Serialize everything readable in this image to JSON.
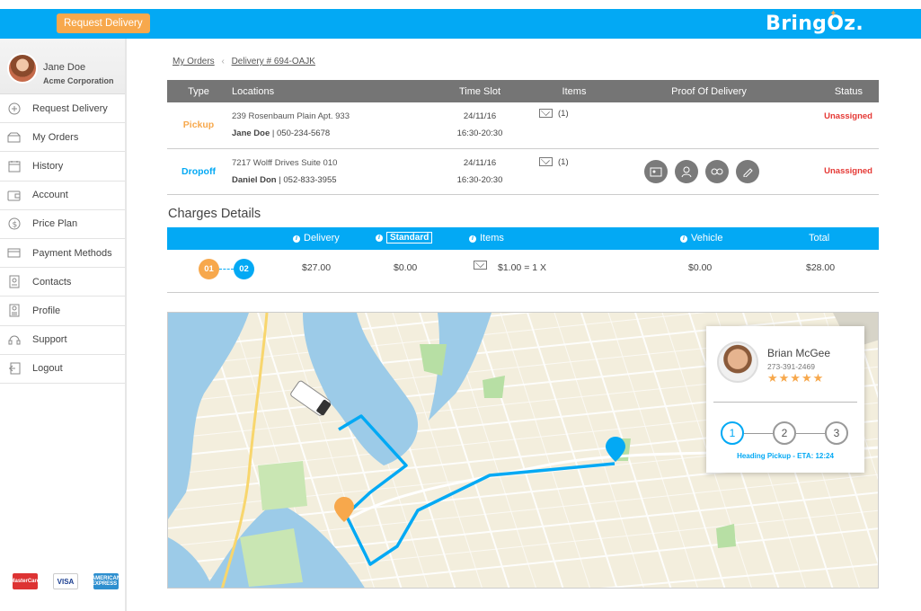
{
  "topbar": {
    "request_button": "Request Delivery",
    "logo": "BringOz.",
    "brand_color": "#03a9f4",
    "accent_color": "#f7a84c"
  },
  "sidebar": {
    "user_name": "Jane Doe",
    "company": "Acme Corporation",
    "items": [
      {
        "label": "Request Delivery",
        "icon": "plus-circle-icon"
      },
      {
        "label": "My Orders",
        "icon": "box-icon"
      },
      {
        "label": "History",
        "icon": "calendar-icon"
      },
      {
        "label": "Account",
        "icon": "wallet-icon"
      },
      {
        "label": "Price Plan",
        "icon": "dollar-coin-icon"
      },
      {
        "label": "Payment Methods",
        "icon": "credit-card-icon"
      },
      {
        "label": "Contacts",
        "icon": "contact-card-icon"
      },
      {
        "label": "Profile",
        "icon": "profile-icon"
      },
      {
        "label": "Support",
        "icon": "headset-icon"
      },
      {
        "label": "Logout",
        "icon": "logout-icon"
      }
    ],
    "payment_cards": [
      "MasterCard",
      "VISA",
      "AMERICAN EXPRESS"
    ]
  },
  "breadcrumb": {
    "parent": "My Orders",
    "current": "Delivery # 694-OAJK"
  },
  "orders": {
    "headers": [
      "Type",
      "Locations",
      "Time Slot",
      "Items",
      "Proof Of Delivery",
      "Status"
    ],
    "rows": [
      {
        "type": "Pickup",
        "address": "239 Rosenbaum Plain Apt. 933",
        "contact_name": "Jane Doe",
        "contact_phone": " | 050-234-5678",
        "date": "24/11/16",
        "time": "16:30-20:30",
        "items": "(1)",
        "status": "Unassigned"
      },
      {
        "type": "Dropoff",
        "address": "7217 Wolff Drives Suite 010",
        "contact_name": "Daniel Don",
        "contact_phone": " | 052-833-3955",
        "date": "24/11/16",
        "time": "16:30-20:30",
        "items": "(1)",
        "status": "Unassigned"
      }
    ]
  },
  "charges": {
    "title": "Charges Details",
    "headers": {
      "delivery": "Delivery",
      "standard": "Standard",
      "items": "Items",
      "vehicle": "Vehicle",
      "total": "Total"
    },
    "stop_from": "01",
    "stop_to": "02",
    "delivery": "$27.00",
    "standard": "$0.00",
    "items": "$1.00 = 1 X",
    "vehicle": "$0.00",
    "total": "$28.00"
  },
  "driver": {
    "name": "Brian McGee",
    "phone": "273-391-2469",
    "rating": 5,
    "stars": "★★★★★",
    "steps": [
      "1",
      "2",
      "3"
    ],
    "active_step": 1,
    "eta": "Heading Pickup - ETA: 12:24"
  }
}
